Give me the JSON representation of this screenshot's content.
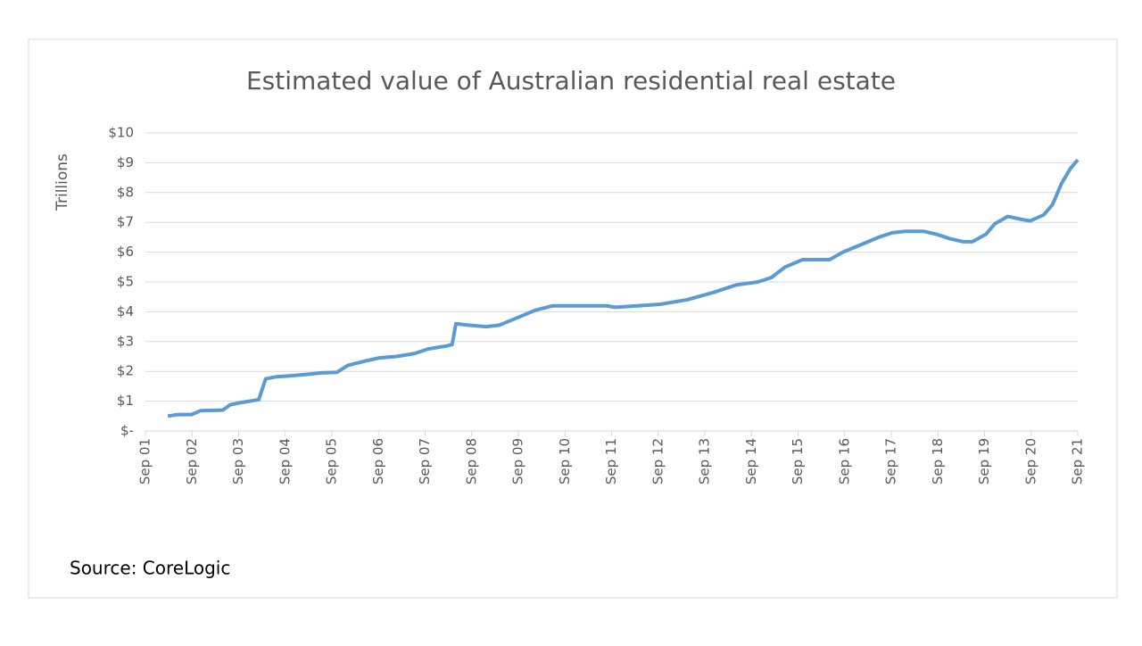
{
  "chart_data": {
    "type": "line",
    "title": "Estimated value of Australian residential real estate",
    "y_label": "Trillions",
    "source": "Source: CoreLogic",
    "color": "#5b9bd5",
    "grid": true,
    "x": [
      2002.15,
      2002.37,
      2002.66,
      2002.85,
      2003.33,
      2003.49,
      2003.71,
      2004.1,
      2004.25,
      2004.48,
      2004.77,
      2005.15,
      2005.44,
      2005.78,
      2006.01,
      2006.39,
      2006.68,
      2007.06,
      2007.45,
      2007.73,
      2008.12,
      2008.25,
      2008.33,
      2008.59,
      2008.98,
      2009.26,
      2009.65,
      2010.03,
      2010.41,
      2011.18,
      2011.56,
      2011.75,
      2012.23,
      2012.71,
      2013.28,
      2013.86,
      2014.34,
      2014.81,
      2015.1,
      2015.39,
      2015.77,
      2016.35,
      2016.63,
      2017.02,
      2017.4,
      2017.69,
      2017.97,
      2018.36,
      2018.64,
      2018.93,
      2019.22,
      2019.41,
      2019.7,
      2019.89,
      2020.17,
      2020.46,
      2020.65,
      2020.94,
      2021.13,
      2021.32,
      2021.51,
      2021.67
    ],
    "values": [
      0.5,
      0.55,
      0.55,
      0.68,
      0.7,
      0.88,
      0.95,
      1.05,
      1.75,
      1.82,
      1.85,
      1.9,
      1.95,
      1.97,
      2.2,
      2.35,
      2.45,
      2.5,
      2.6,
      2.75,
      2.85,
      2.9,
      3.6,
      3.55,
      3.5,
      3.55,
      3.8,
      4.05,
      4.2,
      4.2,
      4.2,
      4.15,
      4.2,
      4.25,
      4.4,
      4.65,
      4.9,
      5.0,
      5.15,
      5.5,
      5.75,
      5.75,
      6.0,
      6.25,
      6.5,
      6.65,
      6.7,
      6.7,
      6.6,
      6.45,
      6.35,
      6.35,
      6.6,
      6.95,
      7.2,
      7.1,
      7.05,
      7.25,
      7.6,
      8.3,
      8.8,
      9.1
    ],
    "xlim": [
      2001.67,
      2021.67
    ],
    "xticks": [
      {
        "value": 2001.67,
        "label": "Sep 01"
      },
      {
        "value": 2002.67,
        "label": "Sep 02"
      },
      {
        "value": 2003.67,
        "label": "Sep 03"
      },
      {
        "value": 2004.67,
        "label": "Sep 04"
      },
      {
        "value": 2005.67,
        "label": "Sep 05"
      },
      {
        "value": 2006.67,
        "label": "Sep 06"
      },
      {
        "value": 2007.67,
        "label": "Sep 07"
      },
      {
        "value": 2008.67,
        "label": "Sep 08"
      },
      {
        "value": 2009.67,
        "label": "Sep 09"
      },
      {
        "value": 2010.67,
        "label": "Sep 10"
      },
      {
        "value": 2011.67,
        "label": "Sep 11"
      },
      {
        "value": 2012.67,
        "label": "Sep 12"
      },
      {
        "value": 2013.67,
        "label": "Sep 13"
      },
      {
        "value": 2014.67,
        "label": "Sep 14"
      },
      {
        "value": 2015.67,
        "label": "Sep 15"
      },
      {
        "value": 2016.67,
        "label": "Sep 16"
      },
      {
        "value": 2017.67,
        "label": "Sep 17"
      },
      {
        "value": 2018.67,
        "label": "Sep 18"
      },
      {
        "value": 2019.67,
        "label": "Sep 19"
      },
      {
        "value": 2020.67,
        "label": "Sep 20"
      },
      {
        "value": 2021.67,
        "label": "Sep 21"
      }
    ],
    "ylim": [
      0,
      10
    ],
    "yticks": [
      {
        "value": 0,
        "label": "$-"
      },
      {
        "value": 1,
        "label": "$1"
      },
      {
        "value": 2,
        "label": "$2"
      },
      {
        "value": 3,
        "label": "$3"
      },
      {
        "value": 4,
        "label": "$4"
      },
      {
        "value": 5,
        "label": "$5"
      },
      {
        "value": 6,
        "label": "$6"
      },
      {
        "value": 7,
        "label": "$7"
      },
      {
        "value": 8,
        "label": "$8"
      },
      {
        "value": 9,
        "label": "$9"
      },
      {
        "value": 10,
        "label": "$10"
      }
    ]
  }
}
